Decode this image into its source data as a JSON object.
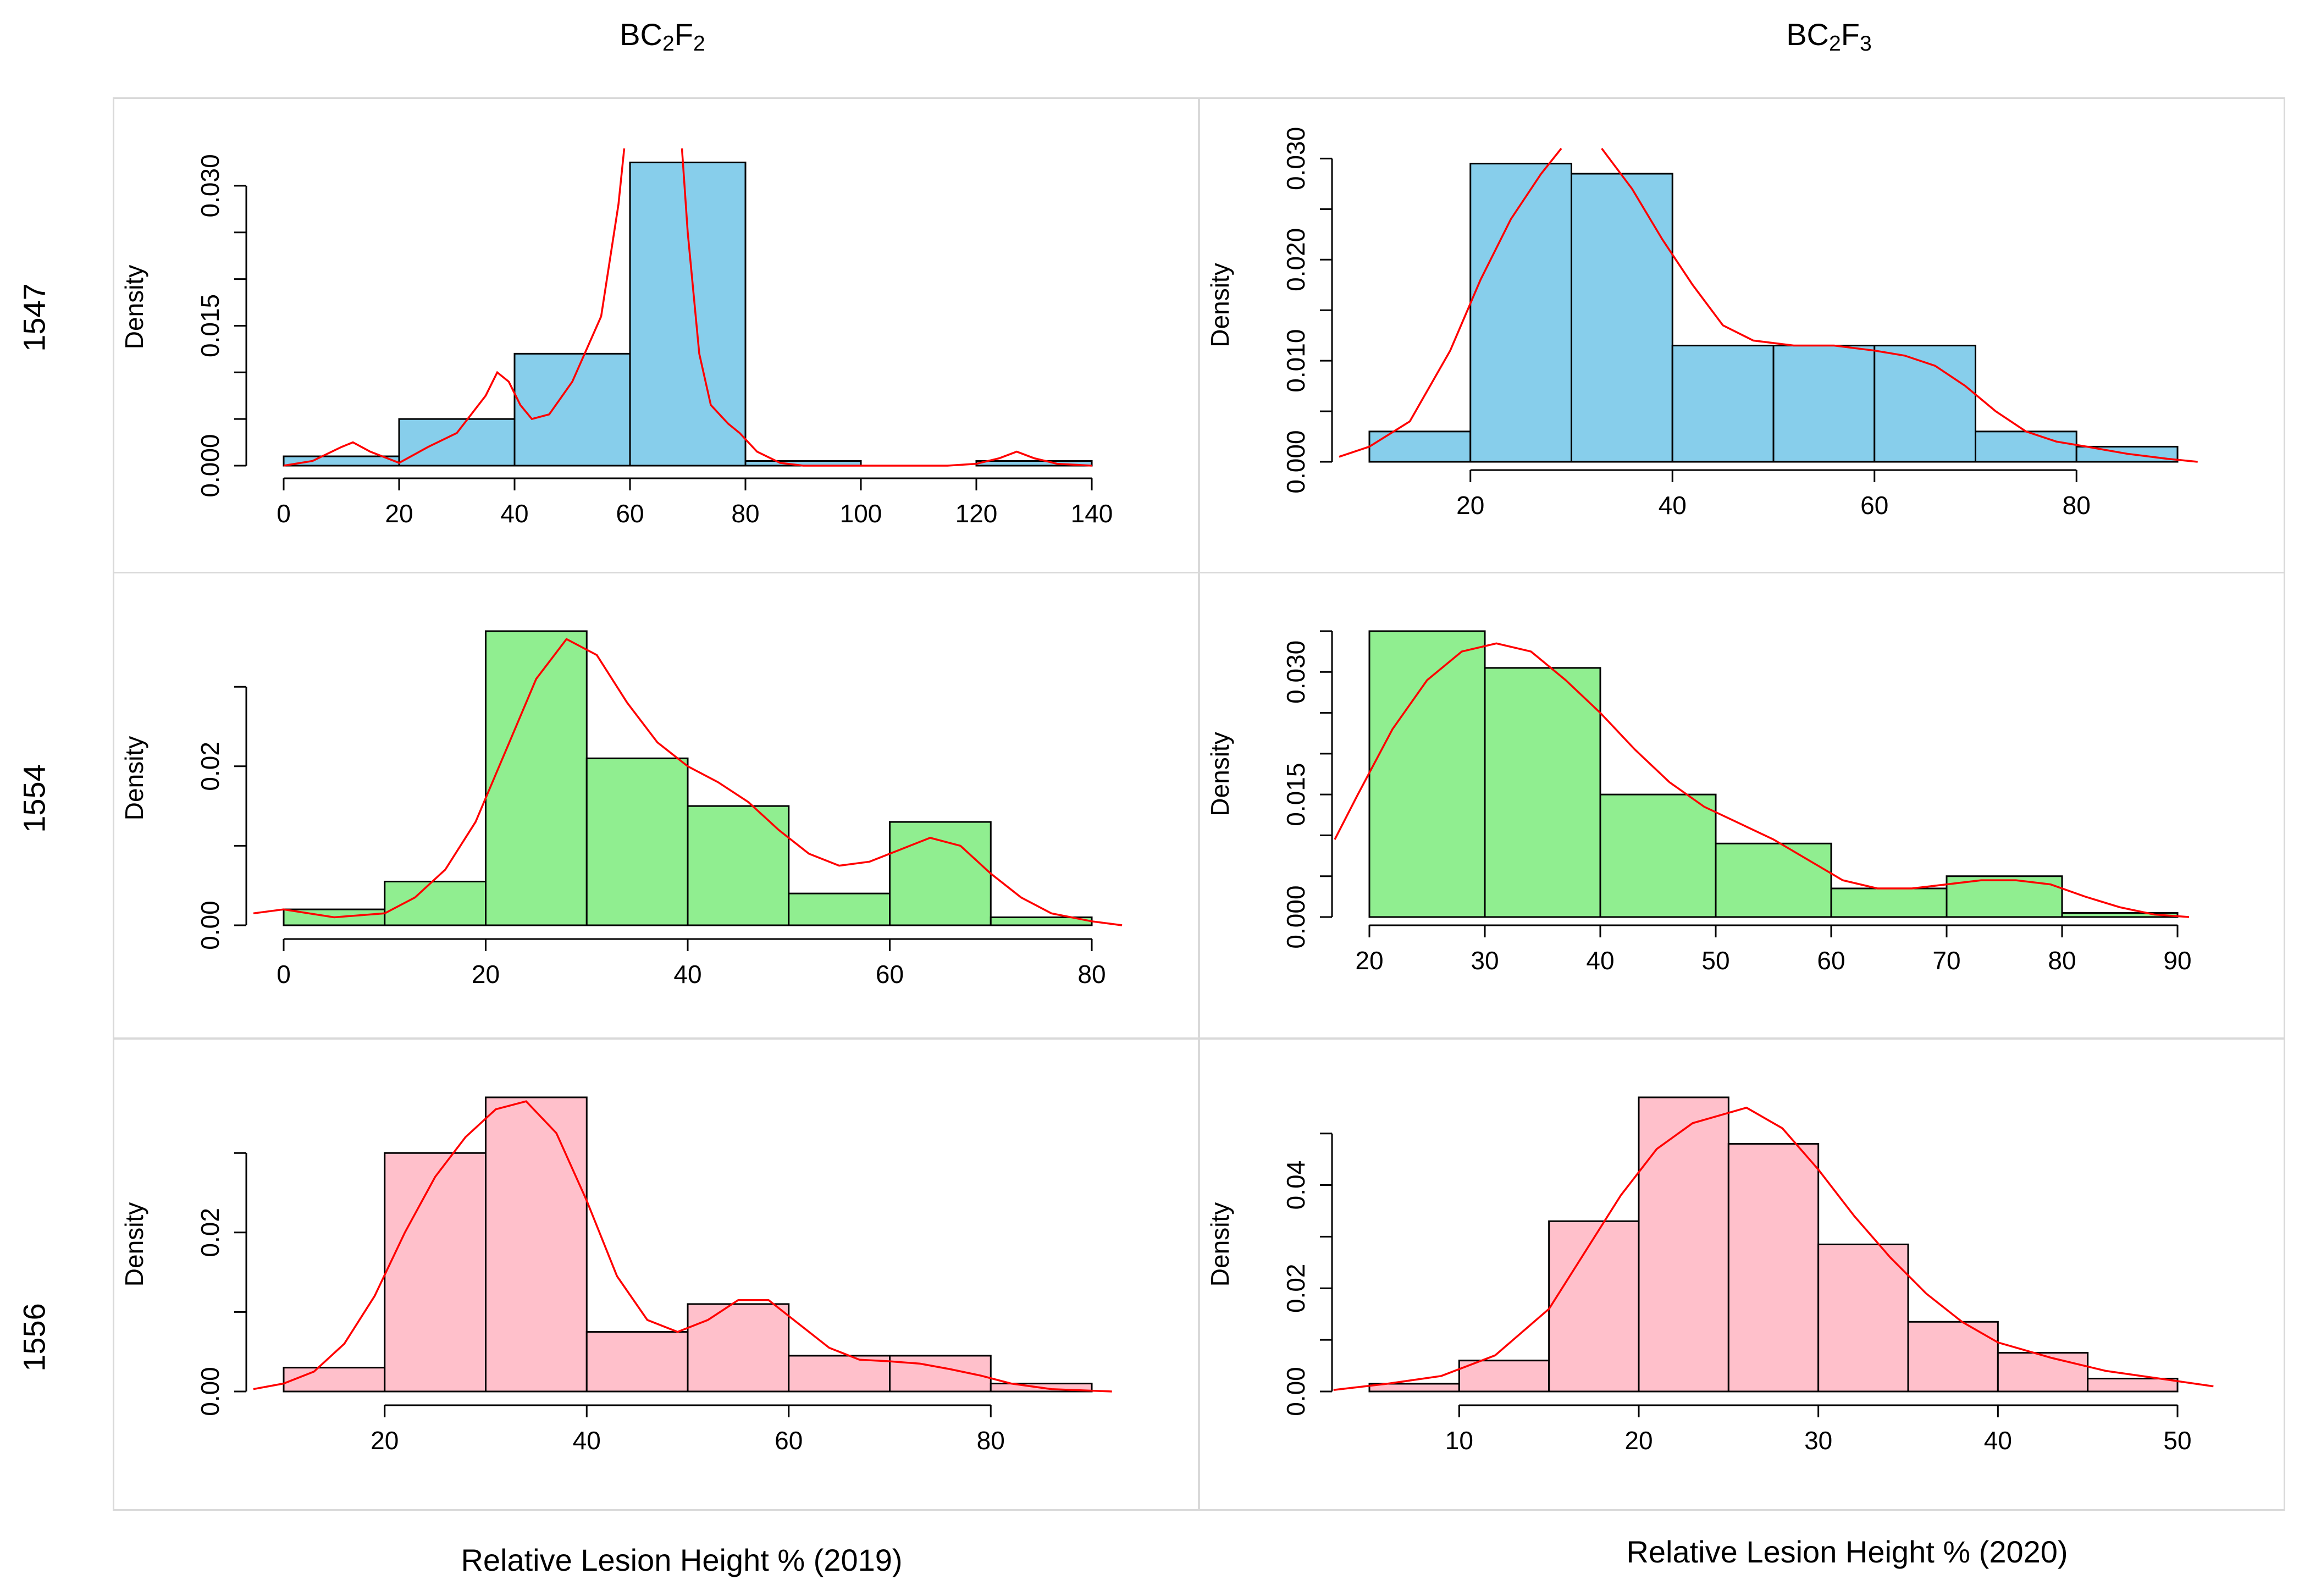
{
  "column_titles": [
    {
      "base": "BC",
      "sub1": "2",
      "mid": "F",
      "sub2": "2"
    },
    {
      "base": "BC",
      "sub1": "2",
      "mid": "F",
      "sub2": "3"
    }
  ],
  "row_titles": [
    "1547",
    "1554",
    "1556"
  ],
  "x_titles": [
    "Relative Lesion Height % (2019)",
    "Relative Lesion Height % (2020)"
  ],
  "colors": {
    "blue": "#87ceeb",
    "green": "#90ee90",
    "pink": "#ffc0cb",
    "curve": "#ff0000",
    "border": "#000000"
  },
  "chart_data": [
    {
      "id": "p11",
      "type": "bar",
      "histogram": true,
      "ylabel": "Density",
      "fill": "blue",
      "bins": [
        [
          0,
          20,
          0.001
        ],
        [
          20,
          40,
          0.005
        ],
        [
          40,
          60,
          0.012
        ],
        [
          60,
          80,
          0.0325
        ],
        [
          80,
          100,
          0.0005
        ],
        [
          100,
          120,
          0
        ],
        [
          120,
          140,
          0.0005
        ]
      ],
      "xticks": [
        0,
        20,
        40,
        60,
        80,
        100,
        120,
        140
      ],
      "xlim": [
        0,
        140
      ],
      "yticks": [
        0.0,
        0.005,
        0.01,
        0.015,
        0.02,
        0.025,
        0.03
      ],
      "ytick_labels": [
        "0.000",
        "",
        "",
        "0.015",
        "",
        "",
        "0.030"
      ],
      "ylim": [
        0,
        0.03
      ],
      "density": [
        [
          0,
          0
        ],
        [
          5,
          0.0005
        ],
        [
          10,
          0.002
        ],
        [
          12,
          0.0025
        ],
        [
          15,
          0.0015
        ],
        [
          20,
          0.0003
        ],
        [
          25,
          0.002
        ],
        [
          30,
          0.0035
        ],
        [
          35,
          0.0075
        ],
        [
          37,
          0.01
        ],
        [
          39,
          0.009
        ],
        [
          41,
          0.0065
        ],
        [
          43,
          0.005
        ],
        [
          46,
          0.0055
        ],
        [
          50,
          0.009
        ],
        [
          55,
          0.016
        ],
        [
          58,
          0.028
        ],
        [
          59,
          0.034
        ]
      ],
      "density2": [
        [
          69,
          0.034
        ],
        [
          70,
          0.025
        ],
        [
          72,
          0.012
        ],
        [
          74,
          0.0065
        ],
        [
          77,
          0.0045
        ],
        [
          79,
          0.0035
        ],
        [
          82,
          0.0015
        ],
        [
          86,
          0.0003
        ],
        [
          90,
          0
        ],
        [
          100,
          0
        ],
        [
          115,
          0
        ],
        [
          120,
          0.0002
        ],
        [
          124,
          0.0008
        ],
        [
          127,
          0.0015
        ],
        [
          130,
          0.0008
        ],
        [
          134,
          0.0002
        ],
        [
          140,
          0
        ]
      ],
      "ylim_view": [
        0,
        0.034
      ]
    },
    {
      "id": "p12",
      "type": "bar",
      "histogram": true,
      "ylabel": "Density",
      "fill": "blue",
      "bins": [
        [
          10,
          20,
          0.003
        ],
        [
          20,
          30,
          0.0295
        ],
        [
          30,
          40,
          0.0285
        ],
        [
          40,
          50,
          0.0115
        ],
        [
          50,
          60,
          0.0115
        ],
        [
          60,
          70,
          0.0115
        ],
        [
          70,
          80,
          0.003
        ],
        [
          80,
          90,
          0.0015
        ]
      ],
      "xticks": [
        20,
        40,
        60,
        80
      ],
      "xlim": [
        20,
        80
      ],
      "axis_xlim": [
        20,
        80
      ],
      "yticks": [
        0.0,
        0.005,
        0.01,
        0.015,
        0.02,
        0.025,
        0.03
      ],
      "ytick_labels": [
        "0.000",
        "",
        "0.010",
        "",
        "0.020",
        "",
        "0.030"
      ],
      "ylim": [
        0,
        0.03
      ],
      "density": [
        [
          7,
          0.0005
        ],
        [
          10,
          0.0015
        ],
        [
          14,
          0.004
        ],
        [
          18,
          0.011
        ],
        [
          21,
          0.018
        ],
        [
          24,
          0.024
        ],
        [
          27,
          0.0285
        ],
        [
          29,
          0.031
        ]
      ],
      "density2": [
        [
          33,
          0.031
        ],
        [
          36,
          0.027
        ],
        [
          39,
          0.022
        ],
        [
          42,
          0.0175
        ],
        [
          45,
          0.0135
        ],
        [
          48,
          0.012
        ],
        [
          52,
          0.0115
        ],
        [
          56,
          0.0115
        ],
        [
          60,
          0.011
        ],
        [
          63,
          0.0105
        ],
        [
          66,
          0.0095
        ],
        [
          69,
          0.0075
        ],
        [
          72,
          0.005
        ],
        [
          75,
          0.003
        ],
        [
          78,
          0.002
        ],
        [
          81,
          0.0015
        ],
        [
          85,
          0.0008
        ],
        [
          89,
          0.0003
        ],
        [
          92,
          0
        ]
      ],
      "ylim_view": [
        0,
        0.031
      ]
    },
    {
      "id": "p21",
      "type": "bar",
      "histogram": true,
      "ylabel": "Density",
      "fill": "green",
      "bins": [
        [
          0,
          10,
          0.002
        ],
        [
          10,
          20,
          0.0055
        ],
        [
          20,
          30,
          0.037
        ],
        [
          30,
          40,
          0.021
        ],
        [
          40,
          50,
          0.015
        ],
        [
          50,
          60,
          0.004
        ],
        [
          60,
          70,
          0.013
        ],
        [
          70,
          80,
          0.001
        ]
      ],
      "xticks": [
        0,
        20,
        40,
        60,
        80
      ],
      "xlim": [
        0,
        80
      ],
      "yticks": [
        0.0,
        0.01,
        0.02,
        0.03
      ],
      "ytick_labels": [
        "0.00",
        "",
        "0.02",
        ""
      ],
      "ylim": [
        0,
        0.03
      ],
      "density": [
        [
          -3,
          0.0015
        ],
        [
          0,
          0.002
        ],
        [
          5,
          0.001
        ],
        [
          10,
          0.0015
        ],
        [
          13,
          0.0035
        ],
        [
          16,
          0.007
        ],
        [
          19,
          0.013
        ],
        [
          22,
          0.022
        ],
        [
          25,
          0.031
        ],
        [
          28,
          0.036
        ],
        [
          31,
          0.034
        ],
        [
          34,
          0.028
        ],
        [
          37,
          0.023
        ],
        [
          40,
          0.02
        ],
        [
          43,
          0.018
        ],
        [
          46,
          0.0155
        ],
        [
          49,
          0.012
        ],
        [
          52,
          0.009
        ],
        [
          55,
          0.0075
        ],
        [
          58,
          0.008
        ],
        [
          61,
          0.0095
        ],
        [
          64,
          0.011
        ],
        [
          67,
          0.01
        ],
        [
          70,
          0.0065
        ],
        [
          73,
          0.0035
        ],
        [
          76,
          0.0015
        ],
        [
          80,
          0.0005
        ],
        [
          83,
          0
        ]
      ],
      "ylim_view": [
        0,
        0.037
      ]
    },
    {
      "id": "p22",
      "type": "bar",
      "histogram": true,
      "ylabel": "Density",
      "fill": "green",
      "bins": [
        [
          20,
          30,
          0.035
        ],
        [
          30,
          40,
          0.0305
        ],
        [
          40,
          50,
          0.015
        ],
        [
          50,
          60,
          0.009
        ],
        [
          60,
          70,
          0.0035
        ],
        [
          70,
          80,
          0.005
        ],
        [
          80,
          90,
          0.0005
        ]
      ],
      "xticks": [
        20,
        30,
        40,
        50,
        60,
        70,
        80,
        90
      ],
      "xlim": [
        20,
        90
      ],
      "yticks": [
        0.0,
        0.005,
        0.01,
        0.015,
        0.02,
        0.025,
        0.03,
        0.035
      ],
      "ytick_labels": [
        "0.000",
        "",
        "",
        "0.015",
        "",
        "",
        "0.030",
        ""
      ],
      "ylim": [
        0,
        0.035
      ],
      "density": [
        [
          17,
          0.0095
        ],
        [
          19,
          0.015
        ],
        [
          22,
          0.023
        ],
        [
          25,
          0.029
        ],
        [
          28,
          0.0325
        ],
        [
          31,
          0.0335
        ],
        [
          34,
          0.0325
        ],
        [
          37,
          0.029
        ],
        [
          40,
          0.025
        ],
        [
          43,
          0.0205
        ],
        [
          46,
          0.0165
        ],
        [
          49,
          0.0135
        ],
        [
          52,
          0.0115
        ],
        [
          55,
          0.0095
        ],
        [
          58,
          0.007
        ],
        [
          61,
          0.0045
        ],
        [
          64,
          0.0035
        ],
        [
          67,
          0.0035
        ],
        [
          70,
          0.004
        ],
        [
          73,
          0.0045
        ],
        [
          76,
          0.0045
        ],
        [
          79,
          0.004
        ],
        [
          82,
          0.0025
        ],
        [
          85,
          0.0012
        ],
        [
          88,
          0.0003
        ],
        [
          91,
          0
        ]
      ],
      "ylim_view": [
        0,
        0.035
      ]
    },
    {
      "id": "p31",
      "type": "bar",
      "histogram": true,
      "ylabel": "Density",
      "fill": "pink",
      "bins": [
        [
          10,
          20,
          0.003
        ],
        [
          20,
          30,
          0.03
        ],
        [
          30,
          40,
          0.037
        ],
        [
          40,
          50,
          0.0075
        ],
        [
          50,
          60,
          0.011
        ],
        [
          60,
          70,
          0.0045
        ],
        [
          70,
          80,
          0.0045
        ],
        [
          80,
          90,
          0.001
        ]
      ],
      "xticks": [
        20,
        40,
        60,
        80
      ],
      "xlim": [
        20,
        80
      ],
      "yticks": [
        0.0,
        0.01,
        0.02,
        0.03
      ],
      "ytick_labels": [
        "0.00",
        "",
        "0.02",
        ""
      ],
      "ylim": [
        0,
        0.03
      ],
      "density": [
        [
          7,
          0.0003
        ],
        [
          10,
          0.001
        ],
        [
          13,
          0.0025
        ],
        [
          16,
          0.006
        ],
        [
          19,
          0.012
        ],
        [
          22,
          0.02
        ],
        [
          25,
          0.027
        ],
        [
          28,
          0.032
        ],
        [
          31,
          0.0355
        ],
        [
          34,
          0.0365
        ],
        [
          37,
          0.0325
        ],
        [
          40,
          0.024
        ],
        [
          43,
          0.0145
        ],
        [
          46,
          0.009
        ],
        [
          49,
          0.0075
        ],
        [
          52,
          0.009
        ],
        [
          55,
          0.0115
        ],
        [
          58,
          0.0115
        ],
        [
          61,
          0.0085
        ],
        [
          64,
          0.0055
        ],
        [
          67,
          0.004
        ],
        [
          70,
          0.0038
        ],
        [
          73,
          0.0035
        ],
        [
          76,
          0.0028
        ],
        [
          79,
          0.002
        ],
        [
          82,
          0.001
        ],
        [
          86,
          0.0003
        ],
        [
          92,
          0
        ]
      ],
      "ylim_view": [
        0,
        0.037
      ]
    },
    {
      "id": "p32",
      "type": "bar",
      "histogram": true,
      "ylabel": "Density",
      "fill": "pink",
      "bins": [
        [
          5,
          10,
          0.0015
        ],
        [
          10,
          15,
          0.006
        ],
        [
          15,
          20,
          0.033
        ],
        [
          20,
          25,
          0.057
        ],
        [
          25,
          30,
          0.048
        ],
        [
          30,
          35,
          0.0285
        ],
        [
          35,
          40,
          0.0135
        ],
        [
          40,
          45,
          0.0075
        ],
        [
          45,
          50,
          0.0025
        ]
      ],
      "xticks": [
        10,
        20,
        30,
        40,
        50
      ],
      "xlim": [
        10,
        50
      ],
      "yticks": [
        0.0,
        0.01,
        0.02,
        0.03,
        0.04,
        0.05
      ],
      "ytick_labels": [
        "0.00",
        "",
        "0.02",
        "",
        "0.04",
        ""
      ],
      "ylim": [
        0,
        0.05
      ],
      "density": [
        [
          3,
          0.0003
        ],
        [
          6,
          0.0015
        ],
        [
          9,
          0.003
        ],
        [
          12,
          0.007
        ],
        [
          15,
          0.016
        ],
        [
          17,
          0.027
        ],
        [
          19,
          0.038
        ],
        [
          21,
          0.047
        ],
        [
          23,
          0.052
        ],
        [
          25,
          0.054
        ],
        [
          26,
          0.055
        ],
        [
          28,
          0.051
        ],
        [
          30,
          0.043
        ],
        [
          32,
          0.034
        ],
        [
          34,
          0.026
        ],
        [
          36,
          0.019
        ],
        [
          38,
          0.0135
        ],
        [
          40,
          0.0095
        ],
        [
          43,
          0.0065
        ],
        [
          46,
          0.004
        ],
        [
          49,
          0.0025
        ],
        [
          52,
          0.001
        ]
      ],
      "ylim_view": [
        0,
        0.057
      ]
    }
  ]
}
